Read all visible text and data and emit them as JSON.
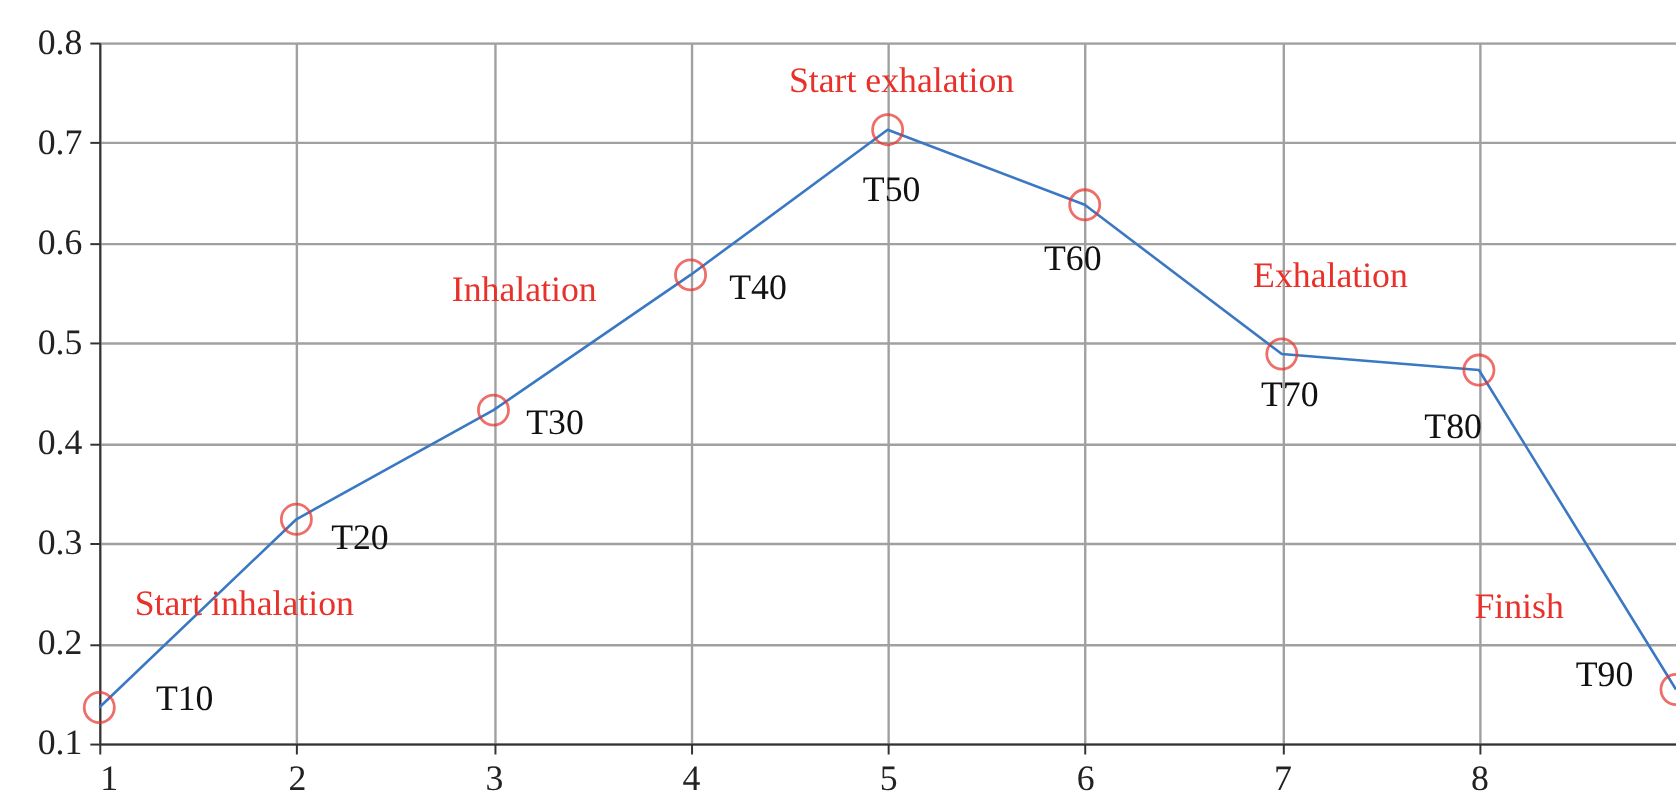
{
  "chart_data": {
    "type": "line",
    "x": [
      1,
      2,
      3,
      4,
      5,
      6,
      7,
      8,
      9
    ],
    "series": [
      {
        "color": "#3a78c4",
        "values": [
          0.136,
          0.324,
          0.433,
          0.568,
          0.713,
          0.638,
          0.489,
          0.473,
          0.154
        ],
        "value_labels": [
          "T10",
          "T20",
          "T30",
          "T40",
          "T50",
          "T60",
          "T70",
          "T80",
          "T90"
        ]
      }
    ],
    "xlim": [
      1,
      9
    ],
    "xticks": [
      1,
      2,
      3,
      4,
      5,
      6,
      7,
      8
    ],
    "ylim": [
      0.1,
      0.8
    ],
    "yticks": [
      0.1,
      0.2,
      0.3,
      0.4,
      0.5,
      0.6,
      0.7,
      0.8
    ],
    "grid": true,
    "marker": "circle",
    "line_style": "solid",
    "annotations": [
      "Start inhalation",
      "Inhalation",
      "Start exhalation",
      "Exhalation",
      "Finish"
    ]
  }
}
